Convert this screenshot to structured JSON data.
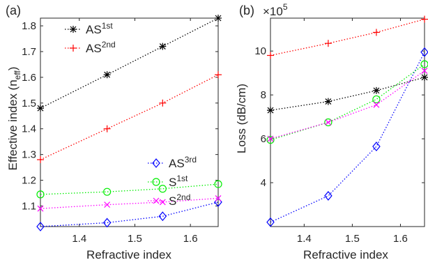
{
  "chart_data": [
    {
      "panel_label": "(a)",
      "type": "line",
      "xlabel": "Refractive index",
      "ylabel": "Effective index (n",
      "ylabel_sub": "eff",
      "ylabel_end": ")",
      "xlim": [
        1.33,
        1.65
      ],
      "ylim": [
        1.02,
        1.83
      ],
      "xticks": [
        1.4,
        1.5,
        1.6
      ],
      "yticks": [
        1.1,
        1.2,
        1.3,
        1.4,
        1.5,
        1.6,
        1.7,
        1.8
      ],
      "x": [
        1.33,
        1.45,
        1.55,
        1.65
      ],
      "series": [
        {
          "name": "AS",
          "sup": "1st",
          "color": "#000000",
          "marker": "asterisk",
          "values": [
            1.48,
            1.61,
            1.72,
            1.83
          ]
        },
        {
          "name": "AS",
          "sup": "2nd",
          "color": "#ff0000",
          "marker": "plus",
          "values": [
            1.28,
            1.4,
            1.5,
            1.61
          ]
        },
        {
          "name": "AS",
          "sup": "3rd",
          "color": "#0000ff",
          "marker": "diamond",
          "values": [
            1.02,
            1.035,
            1.06,
            1.115
          ]
        },
        {
          "name": "S",
          "sup": "1st",
          "color": "#00ee00",
          "marker": "circle",
          "values": [
            1.145,
            1.155,
            1.167,
            1.185
          ]
        },
        {
          "name": "S",
          "sup": "2nd",
          "color": "#ff00ff",
          "marker": "x",
          "values": [
            1.09,
            1.105,
            1.115,
            1.13
          ]
        }
      ]
    },
    {
      "panel_label": "(b)",
      "type": "line",
      "xlabel": "Refractive index",
      "ylabel": "Loss (dB/cm)",
      "exponent_label": "×10",
      "exponent_power": "5",
      "xlim": [
        1.33,
        1.65
      ],
      "ylim": [
        2.0,
        11.5
      ],
      "xticks": [
        1.4,
        1.5,
        1.6
      ],
      "yticks": [
        4,
        6,
        8,
        10
      ],
      "x": [
        1.33,
        1.45,
        1.55,
        1.65
      ],
      "series": [
        {
          "color": "#000000",
          "marker": "asterisk",
          "values": [
            7.3,
            7.7,
            8.2,
            8.8
          ]
        },
        {
          "color": "#ff0000",
          "marker": "plus",
          "values": [
            9.8,
            10.35,
            10.85,
            11.45
          ]
        },
        {
          "color": "#0000ff",
          "marker": "diamond",
          "values": [
            2.2,
            3.4,
            5.65,
            9.95
          ]
        },
        {
          "color": "#00ee00",
          "marker": "circle",
          "values": [
            5.95,
            6.75,
            7.8,
            9.4
          ]
        },
        {
          "color": "#ff00ff",
          "marker": "x",
          "values": [
            6.0,
            6.75,
            7.55,
            9.1
          ]
        }
      ]
    }
  ]
}
